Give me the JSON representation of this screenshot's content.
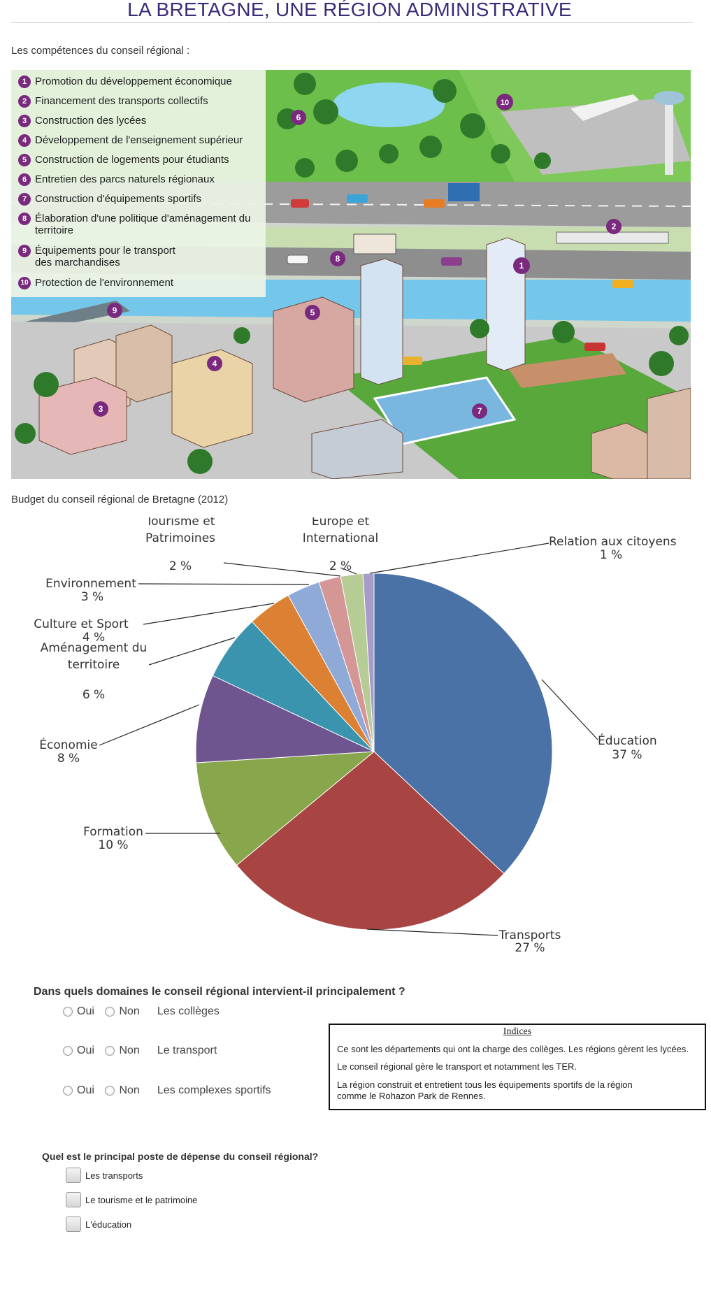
{
  "header": {
    "title": "LA BRETAGNE, UNE RÉGION ADMINISTRATIVE"
  },
  "competences": {
    "caption": "Les compétences du conseil régional :",
    "items": [
      {
        "num": "1",
        "label": "Promotion du développement économique"
      },
      {
        "num": "2",
        "label": "Financement des transports collectifs"
      },
      {
        "num": "3",
        "label": "Construction des lycées"
      },
      {
        "num": "4",
        "label": "Développement de l'enseignement supérieur"
      },
      {
        "num": "5",
        "label": "Construction de logements pour étudiants"
      },
      {
        "num": "6",
        "label": "Entretien des parcs naturels régionaux"
      },
      {
        "num": "7",
        "label": "Construction d'équipements sportifs"
      },
      {
        "num": "8",
        "label": "Élaboration d'une politique d'aménagement du territoire"
      },
      {
        "num": "9",
        "label": "Équipements pour le transport des marchandises"
      },
      {
        "num": "10",
        "label": "Protection de l'environnement"
      }
    ],
    "markers": [
      "1",
      "2",
      "3",
      "4",
      "5",
      "6",
      "7",
      "8",
      "9",
      "10"
    ]
  },
  "budget": {
    "caption": "Budget du conseil régional de Bretagne (2012)"
  },
  "chart_data": {
    "type": "pie",
    "title": "Budget du conseil régional de Bretagne (2012)",
    "start_angle": "12 o'clock, clockwise",
    "slices": [
      {
        "label": "Éducation",
        "value": 37,
        "text": "37 %",
        "color": "#4a72a6"
      },
      {
        "label": "Transports",
        "value": 27,
        "text": "27 %",
        "color": "#a84543"
      },
      {
        "label": "Formation",
        "value": 10,
        "text": "10 %",
        "color": "#88a64c"
      },
      {
        "label": "Économie",
        "value": 8,
        "text": "8 %",
        "color": "#6f558f"
      },
      {
        "label": "Aménagement du territoire",
        "value": 6,
        "text": "6 %",
        "color": "#3b94ad"
      },
      {
        "label": "Culture et Sport",
        "value": 4,
        "text": "4 %",
        "color": "#dc8034"
      },
      {
        "label": "Environnement",
        "value": 3,
        "text": "3 %",
        "color": "#8faad7"
      },
      {
        "label": "Tourisme et Patrimoines",
        "value": 2,
        "text": "2 %",
        "color": "#d59696"
      },
      {
        "label": "Europe et International",
        "value": 2,
        "text": "2 %",
        "color": "#b6cc95"
      },
      {
        "label": "Relation aux citoyens",
        "value": 1,
        "text": "1 %",
        "color": "#a99bc7"
      }
    ]
  },
  "question1": {
    "title": "Dans quels domaines le conseil régional intervient-il principalement ?",
    "yes_label": "Oui",
    "no_label": "Non",
    "rows": [
      {
        "label": "Les collèges"
      },
      {
        "label": "Le transport"
      },
      {
        "label": "Les complexes sportifs"
      }
    ]
  },
  "hints": {
    "title": "Indices",
    "lines": [
      "Ce sont les départements qui ont la charge des collèges. Les régions gèrent les lycées.",
      "Le conseil régional gère le transport et notamment les TER.",
      "La région construit et entretient tous les équipements sportifs de la région comme le Rohazon Park de Rennes."
    ]
  },
  "question2": {
    "title": "Quel est le principal poste de dépense du conseil régional?",
    "options": [
      {
        "label": "Les transports"
      },
      {
        "label": "Le tourisme et le patrimoine"
      },
      {
        "label": "L'éducation"
      }
    ]
  }
}
